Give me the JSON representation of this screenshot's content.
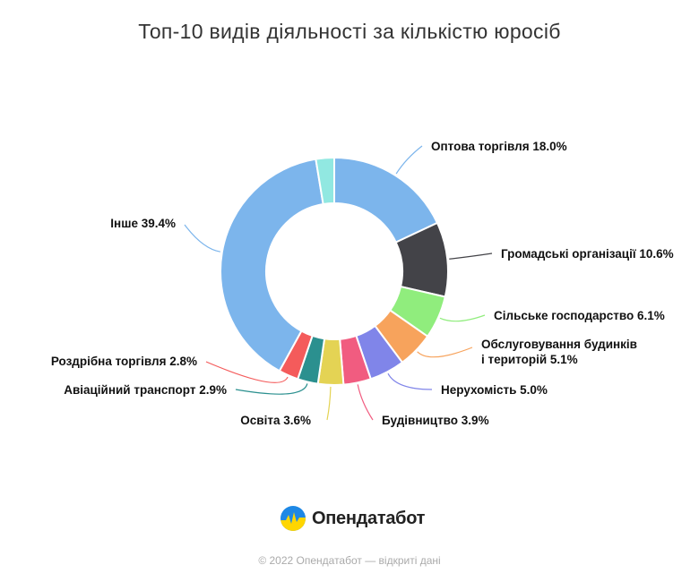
{
  "chart_data": {
    "type": "pie",
    "title": "Топ-10 видів діяльності за кількістю юросіб",
    "slices": [
      {
        "label": "Оптова торгівля",
        "label_lines": [
          "Оптова торгівля 18.0%"
        ],
        "value": 18.0,
        "color": "#7cb5ec"
      },
      {
        "label": "Громадські організації",
        "label_lines": [
          "Громадські організації 10.6%"
        ],
        "value": 10.6,
        "color": "#434348"
      },
      {
        "label": "Сільське господарство",
        "label_lines": [
          "Сільське господарство 6.1%"
        ],
        "value": 6.1,
        "color": "#90ed7d"
      },
      {
        "label": "Обслуговування будинків і територій",
        "label_lines": [
          "Обслуговування будинків",
          "і територій 5.1%"
        ],
        "value": 5.1,
        "color": "#f7a35c"
      },
      {
        "label": "Нерухомість",
        "label_lines": [
          "Нерухомість 5.0%"
        ],
        "value": 5.0,
        "color": "#8085e9"
      },
      {
        "label": "Будівництво",
        "label_lines": [
          "Будівництво 3.9%"
        ],
        "value": 3.9,
        "color": "#f15c80"
      },
      {
        "label": "Освіта",
        "label_lines": [
          "Освіта 3.6%"
        ],
        "value": 3.6,
        "color": "#e4d354"
      },
      {
        "label": "Авіаційний транспорт",
        "label_lines": [
          "Авіаційний транспорт 2.9%"
        ],
        "value": 2.9,
        "color": "#2b908f"
      },
      {
        "label": "Роздрібна торгівля",
        "label_lines": [
          "Роздрібна торгівля 2.8%"
        ],
        "value": 2.8,
        "color": "#f45b5b"
      },
      {
        "label": "Інше",
        "label_lines": [
          "Інше 39.4%"
        ],
        "value": 39.4,
        "color": "#7cb5ec"
      },
      {
        "label": "",
        "label_lines": [],
        "value": 2.6,
        "color": "#91e8e1"
      }
    ]
  },
  "branding": {
    "logo_text": "Опендатабот",
    "logo_icon": "opendatabot-logo-icon",
    "logo_colors": [
      "#1e88e5",
      "#ffd600"
    ]
  },
  "footer": {
    "text": "© 2022 Опендатабот — відкриті дані"
  }
}
